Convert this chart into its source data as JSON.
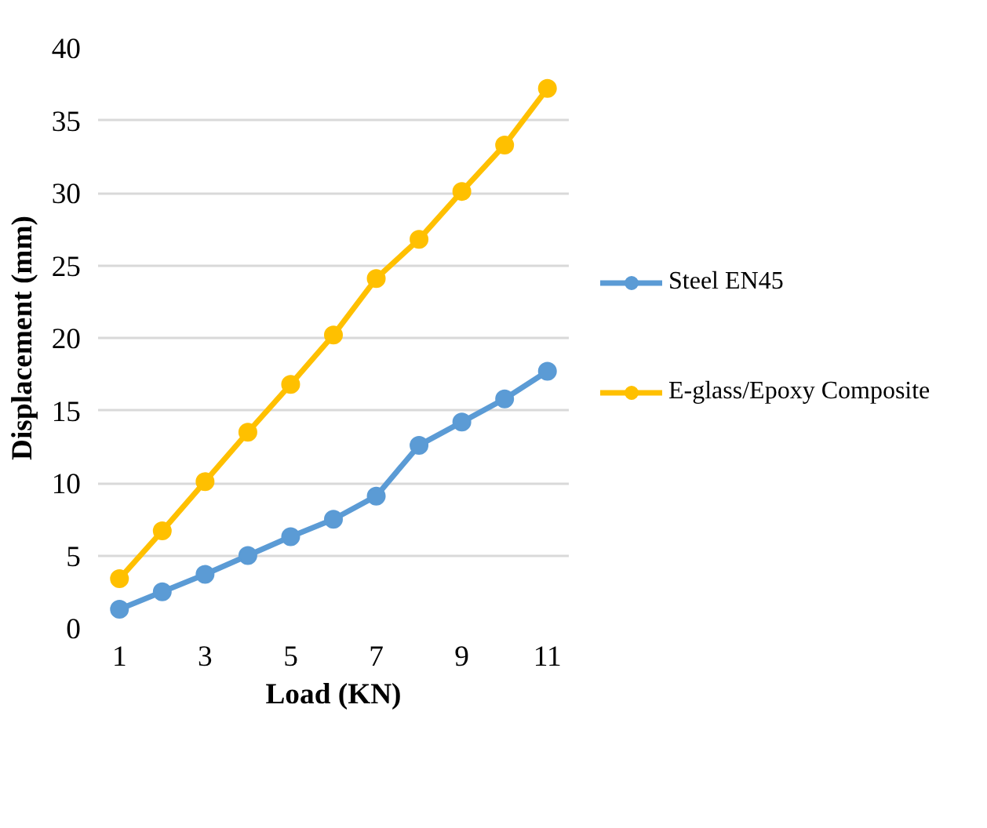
{
  "chart_data": {
    "type": "line",
    "xlabel": "Load (KN)",
    "ylabel": "Displacement (mm)",
    "x": [
      1,
      2,
      3,
      4,
      5,
      6,
      7,
      8,
      9,
      10,
      11
    ],
    "xlim": [
      0.5,
      11.5
    ],
    "xticks": [
      1,
      3,
      5,
      7,
      9,
      11
    ],
    "ylim": [
      0,
      40
    ],
    "yticks": [
      0,
      5,
      10,
      15,
      20,
      25,
      30,
      35,
      40
    ],
    "grid": "y",
    "legend": "right",
    "marker": "circle",
    "line_style": "solid",
    "series": [
      {
        "name": "Steel EN45",
        "color": "#5b9bd5",
        "values": [
          1.3,
          2.5,
          3.7,
          5.0,
          6.3,
          7.5,
          9.1,
          12.6,
          14.2,
          15.8,
          17.7
        ]
      },
      {
        "name": "E-glass/Epoxy Composite",
        "color": "#ffc000",
        "values": [
          3.4,
          6.7,
          10.1,
          13.5,
          16.8,
          20.2,
          24.1,
          26.8,
          30.1,
          33.3,
          37.2
        ]
      }
    ]
  }
}
